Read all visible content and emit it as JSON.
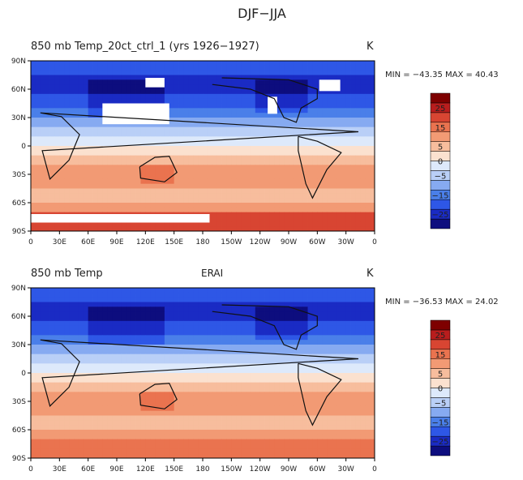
{
  "figure_title": "DJF−JJA",
  "lon_ticks": [
    "0",
    "30E",
    "60E",
    "90E",
    "120E",
    "150E",
    "180",
    "150W",
    "120W",
    "90W",
    "60W",
    "30W",
    "0"
  ],
  "lat_ticks": [
    "90N",
    "60N",
    "30N",
    "0",
    "30S",
    "60S",
    "90S"
  ],
  "colorbar_labels": [
    "25",
    "15",
    "5",
    "0",
    "−5",
    "−15",
    "−25"
  ],
  "colors": [
    "#0d0d7e",
    "#1a2bc4",
    "#2e57e6",
    "#4a7fe9",
    "#86aaf1",
    "#b9cff7",
    "#dde9fb",
    "#fbe1cf",
    "#f7bd9d",
    "#f29a74",
    "#ea734f",
    "#d84532",
    "#b81d1d",
    "#7e0000"
  ],
  "panels": [
    {
      "label_left": "850  mb  Temp_20ct_ctrl_1  (yrs 1926−1927)",
      "label_center": "",
      "units": "K",
      "min_max": "MIN = −43.35  MAX =   40.43"
    },
    {
      "label_left": "850  mb  Temp",
      "label_center": "ERAI",
      "units": "K",
      "min_max": "MIN = −36.53  MAX =   24.02"
    }
  ],
  "chart_data": [
    {
      "type": "heatmap",
      "title": "850 mb Temp_20ct_ctrl_1 (yrs 1926−1927)",
      "units": "K",
      "x": "longitude 0→360",
      "y": "latitude 90S→90N",
      "levels": [
        -30,
        -25,
        -20,
        -15,
        -10,
        -5,
        -2,
        0,
        2,
        5,
        10,
        15,
        20,
        25,
        30
      ],
      "min": -43.35,
      "max": 40.43,
      "missing_regions": "white areas over high topography (Tibet, Greenland, Rockies, Antarctica)"
    },
    {
      "type": "heatmap",
      "title": "850 mb Temp",
      "subtitle": "ERAI",
      "units": "K",
      "x": "longitude 0→360",
      "y": "latitude 90S→90N",
      "levels": [
        -30,
        -25,
        -20,
        -15,
        -10,
        -5,
        -2,
        0,
        2,
        5,
        10,
        15,
        20,
        25,
        30
      ],
      "min": -36.53,
      "max": 24.02
    }
  ]
}
